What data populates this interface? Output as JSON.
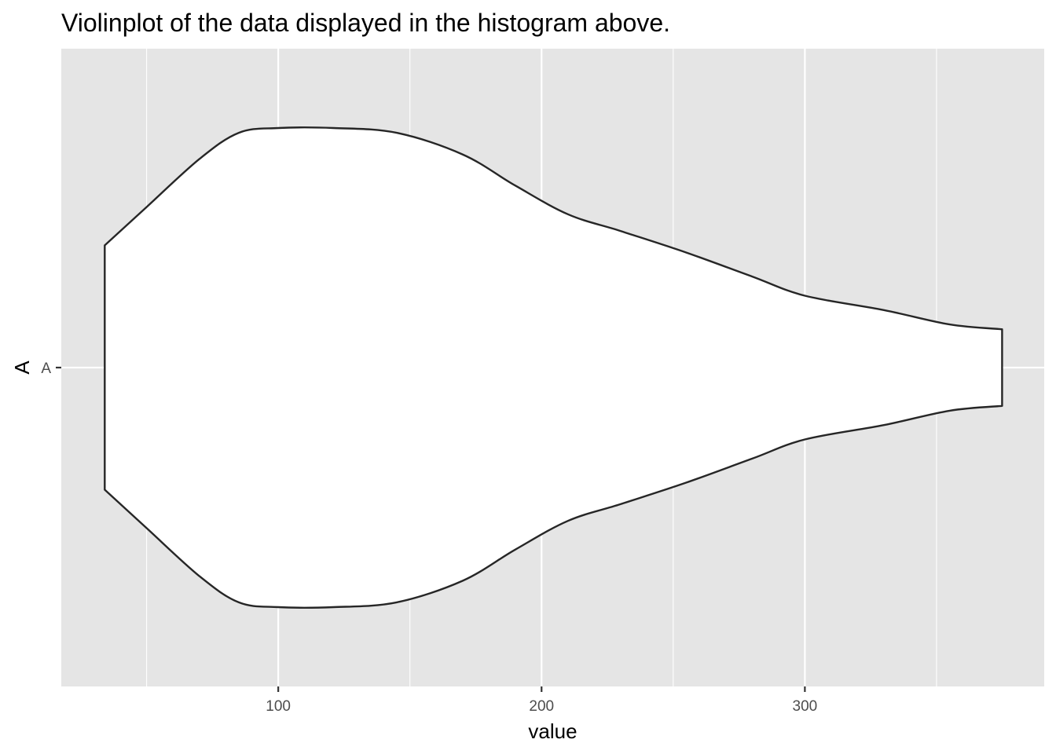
{
  "chart_data": {
    "type": "violin",
    "title": "Violinplot of the data displayed in the histogram above.",
    "xlabel": "value",
    "ylabel": "A",
    "categories": [
      "A"
    ],
    "xlim": [
      17.6,
      390.9
    ],
    "x_ticks": [
      100,
      200,
      300
    ],
    "x_tick_labels": [
      "100",
      "200",
      "300"
    ],
    "x_minor_ticks": [
      50,
      150,
      250,
      350
    ],
    "grid": true,
    "colors": {
      "panel_bg": "#e5e5e5",
      "grid": "#ffffff",
      "violin_fill": "#ffffff",
      "violin_outline": "#262626"
    },
    "violin": {
      "category": "A",
      "density_profile": [
        {
          "x": 34.1,
          "h": 0.51
        },
        {
          "x": 50,
          "h": 0.67
        },
        {
          "x": 70,
          "h": 0.87
        },
        {
          "x": 85,
          "h": 0.98
        },
        {
          "x": 100,
          "h": 1.0
        },
        {
          "x": 121,
          "h": 1.0
        },
        {
          "x": 145,
          "h": 0.98
        },
        {
          "x": 170,
          "h": 0.89
        },
        {
          "x": 190,
          "h": 0.76
        },
        {
          "x": 210,
          "h": 0.64
        },
        {
          "x": 230,
          "h": 0.57
        },
        {
          "x": 255,
          "h": 0.48
        },
        {
          "x": 280,
          "h": 0.38
        },
        {
          "x": 300,
          "h": 0.3
        },
        {
          "x": 330,
          "h": 0.24
        },
        {
          "x": 355,
          "h": 0.18
        },
        {
          "x": 374.9,
          "h": 0.16
        }
      ]
    }
  }
}
